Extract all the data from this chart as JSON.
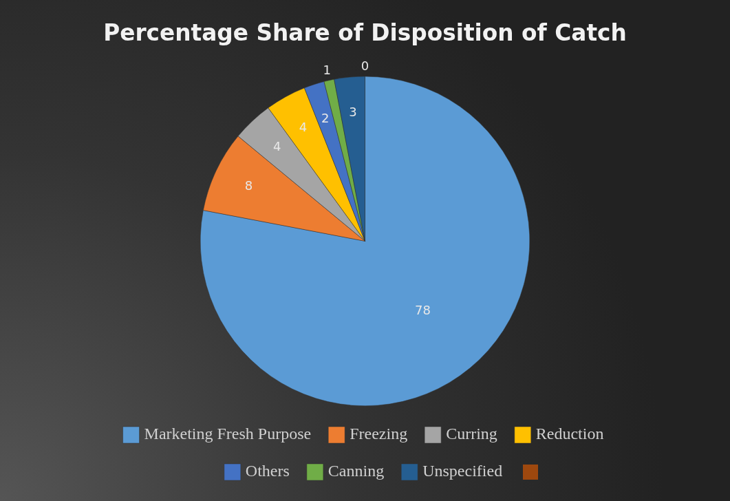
{
  "chart_data": {
    "type": "pie",
    "title": "Percentage Share of Disposition of Catch",
    "categories": [
      "Marketing Fresh Purpose",
      "Freezing",
      "Curring",
      "Reduction",
      "Others",
      "Canning",
      "Unspecified",
      null
    ],
    "values": [
      78,
      8,
      4,
      4,
      2,
      1,
      3,
      0
    ],
    "colors": [
      "#5b9bd5",
      "#ed7d31",
      "#a5a5a5",
      "#ffc000",
      "#4472c4",
      "#70ad47",
      "#255e91",
      "#9e480e"
    ],
    "value_labels": [
      "78",
      "8",
      "4",
      "4",
      "2",
      "1",
      "3",
      "0"
    ],
    "legend": "bottom"
  }
}
